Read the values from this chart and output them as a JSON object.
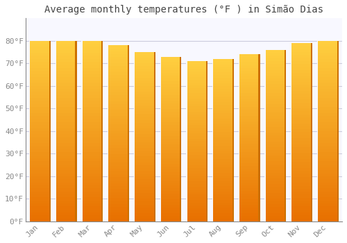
{
  "title": "Average monthly temperatures (°F ) in Simão Dias",
  "months": [
    "Jan",
    "Feb",
    "Mar",
    "Apr",
    "May",
    "Jun",
    "Jul",
    "Aug",
    "Sep",
    "Oct",
    "Nov",
    "Dec"
  ],
  "values": [
    80,
    80,
    80,
    78,
    75,
    73,
    71,
    72,
    74,
    76,
    79,
    80
  ],
  "bar_color_bottom": "#E87000",
  "bar_color_mid": "#FFA000",
  "bar_color_top": "#FFD040",
  "bar_right_edge": "#CC7000",
  "bar_left_gap": "#FFFFFF",
  "background_color": "#FFFFFF",
  "plot_bg_color": "#F8F8FF",
  "grid_color": "#CCCCDD",
  "ylim": [
    0,
    90
  ],
  "yticks": [
    0,
    10,
    20,
    30,
    40,
    50,
    60,
    70,
    80
  ],
  "ytick_labels": [
    "0°F",
    "10°F",
    "20°F",
    "30°F",
    "40°F",
    "50°F",
    "60°F",
    "70°F",
    "80°F"
  ],
  "title_fontsize": 10,
  "tick_fontsize": 8,
  "title_color": "#444444",
  "tick_color": "#888888",
  "font_family": "monospace"
}
